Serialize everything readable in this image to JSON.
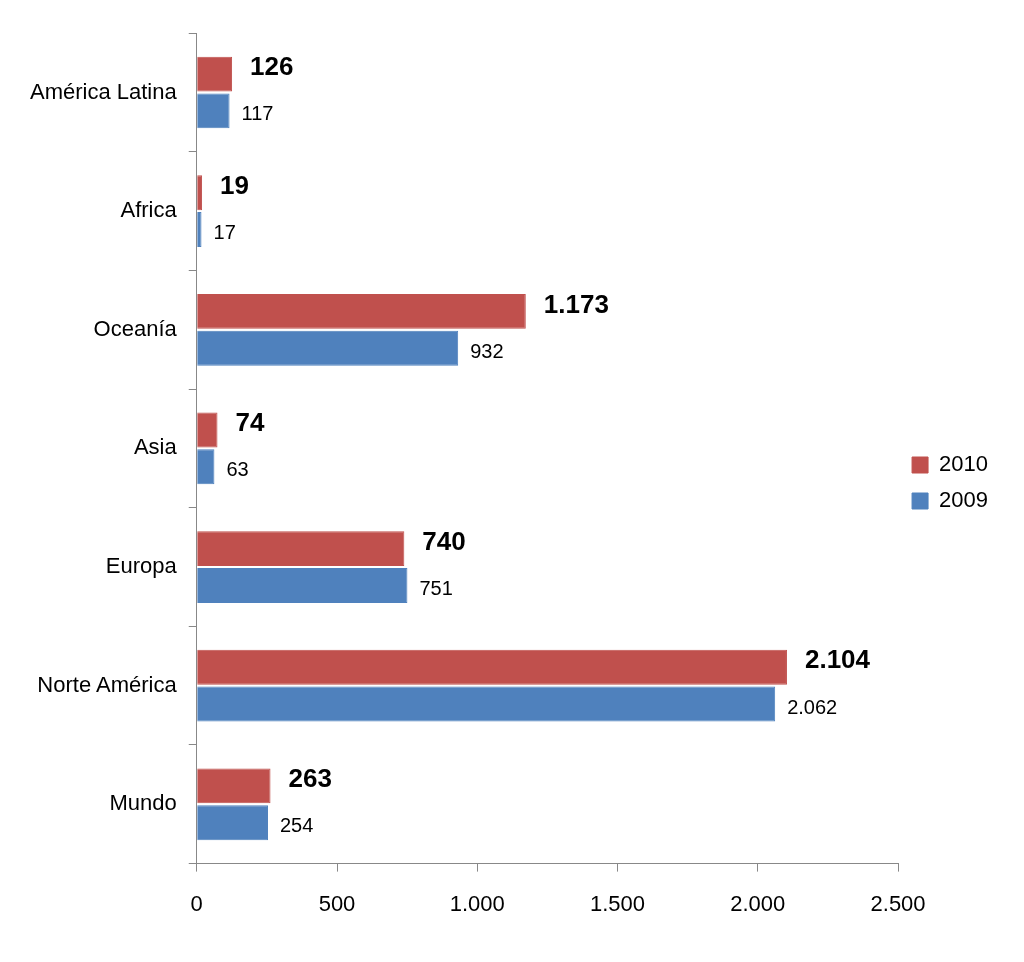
{
  "chart_data": {
    "type": "bar",
    "orientation": "horizontal",
    "categories": [
      "América Latina",
      "Africa",
      "Oceanía",
      "Asia",
      "Europa",
      "Norte América",
      "Mundo"
    ],
    "series": [
      {
        "name": "2010",
        "color": "#c0504d",
        "values": [
          126,
          19,
          1173,
          74,
          740,
          2104,
          263
        ],
        "value_labels": [
          "126",
          "19",
          "1.173",
          "74",
          "740",
          "2.104",
          "263"
        ]
      },
      {
        "name": "2009",
        "color": "#4f81bd",
        "values": [
          117,
          17,
          932,
          63,
          751,
          2062,
          254
        ],
        "value_labels": [
          "117",
          "17",
          "932",
          "63",
          "751",
          "2.062",
          "254"
        ]
      }
    ],
    "xlim": [
      0,
      2500
    ],
    "xticks": [
      0,
      {
        "value": 500,
        "label": "500"
      },
      {
        "value": 1000,
        "label": "1.000"
      },
      {
        "value": 1500,
        "label": "1.500"
      },
      {
        "value": 2000,
        "label": "2.000"
      },
      {
        "value": 2500,
        "label": "2.500"
      }
    ],
    "legend": "right",
    "grid": false
  }
}
